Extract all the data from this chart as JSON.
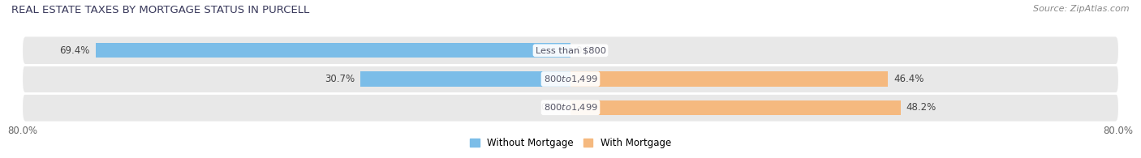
{
  "title": "REAL ESTATE TAXES BY MORTGAGE STATUS IN PURCELL",
  "source": "Source: ZipAtlas.com",
  "categories": [
    "Less than $800",
    "$800 to $1,499",
    "$800 to $1,499"
  ],
  "without_mortgage": [
    69.4,
    30.7,
    0.0
  ],
  "with_mortgage": [
    0.0,
    46.4,
    48.2
  ],
  "color_without": "#7BBDE8",
  "color_with": "#F5B97F",
  "xlim": [
    -80.0,
    80.0
  ],
  "bar_height": 0.52,
  "row_bg_color": "#E8E8E8",
  "fig_bg_color": "#FFFFFF",
  "legend_labels": [
    "Without Mortgage",
    "With Mortgage"
  ],
  "title_color": "#3A3A5C",
  "label_color": "#444444",
  "source_color": "#888888"
}
